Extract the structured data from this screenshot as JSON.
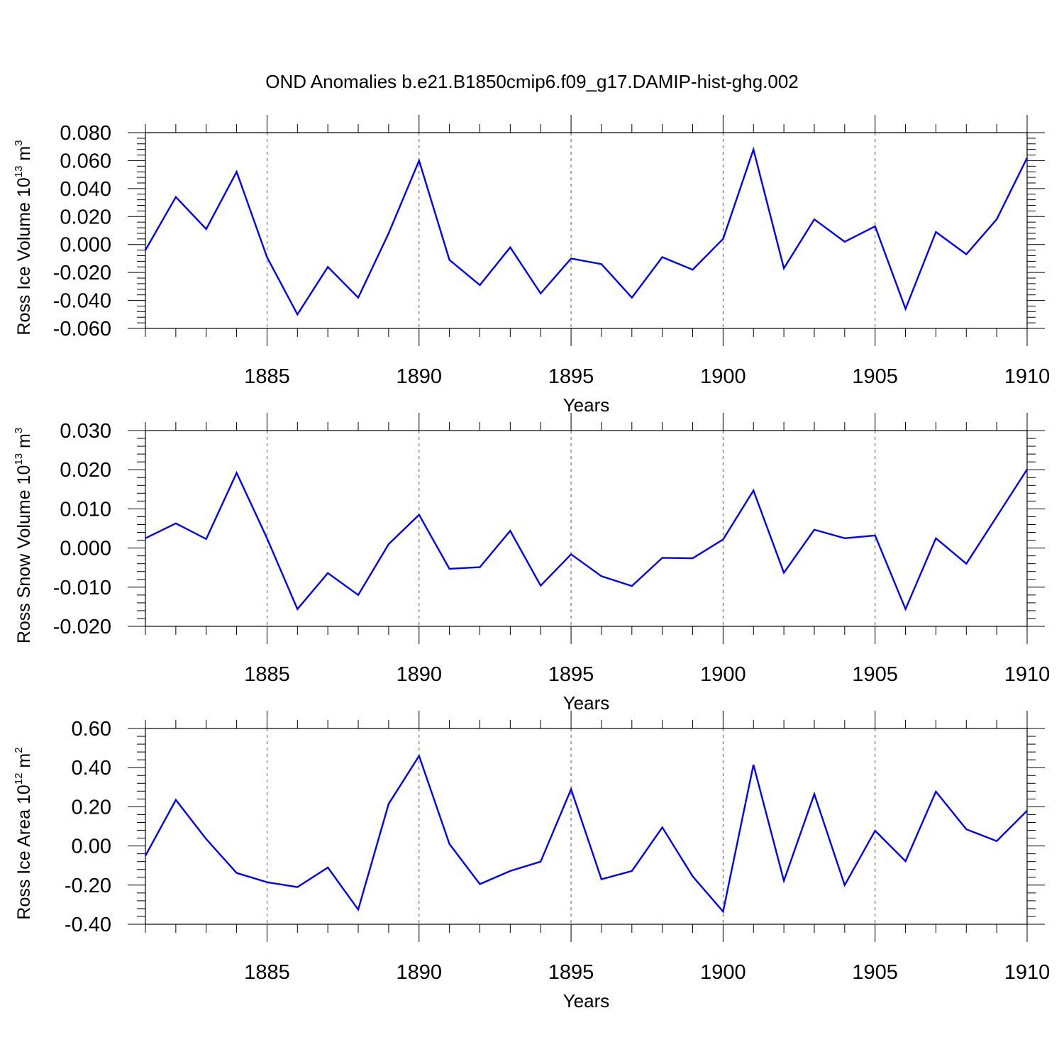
{
  "title": "OND Anomalies b.e21.B1850cmip6.f09_g17.DAMIP-hist-ghg.002",
  "colors": {
    "line": "#0000ff",
    "axis": "#000000",
    "grid": "#555555"
  },
  "chart_data": [
    {
      "type": "line",
      "ylabel": {
        "main": "Ross Ice Volume 10",
        "exp": "13",
        "unit": " m",
        "unit_exp": "3"
      },
      "xlabel": "Years",
      "xlim": [
        1881,
        1910
      ],
      "ylim": [
        -0.06,
        0.08
      ],
      "yticks": [
        -0.06,
        -0.04,
        -0.02,
        0.0,
        0.02,
        0.04,
        0.06,
        0.08
      ],
      "ytick_labels": [
        "-0.060",
        "-0.040",
        "-0.020",
        "0.000",
        "0.020",
        "0.040",
        "0.060",
        "0.080"
      ],
      "xticks": [
        1885,
        1890,
        1895,
        1900,
        1905,
        1910
      ],
      "xtick_labels": [
        "1885",
        "1890",
        "1895",
        "1900",
        "1905",
        "1910"
      ],
      "grid": "vertical dashed at labeled years",
      "x": [
        1881,
        1882,
        1883,
        1884,
        1885,
        1886,
        1887,
        1888,
        1889,
        1890,
        1891,
        1892,
        1893,
        1894,
        1895,
        1896,
        1897,
        1898,
        1899,
        1900,
        1901,
        1902,
        1903,
        1904,
        1905,
        1906,
        1907,
        1908,
        1909,
        1910
      ],
      "y": [
        -0.004,
        0.034,
        0.011,
        0.052,
        -0.009,
        -0.05,
        -0.016,
        -0.038,
        0.008,
        0.06,
        -0.011,
        -0.029,
        -0.002,
        -0.035,
        -0.01,
        -0.014,
        -0.038,
        -0.009,
        -0.018,
        0.004,
        0.068,
        -0.017,
        0.018,
        0.002,
        0.013,
        -0.046,
        0.009,
        -0.007,
        0.018,
        0.062
      ]
    },
    {
      "type": "line",
      "ylabel": {
        "main": "Ross Snow Volume 10",
        "exp": "13",
        "unit": " m",
        "unit_exp": "3"
      },
      "xlabel": "Years",
      "xlim": [
        1881,
        1910
      ],
      "ylim": [
        -0.02,
        0.03
      ],
      "yticks": [
        -0.02,
        -0.01,
        0.0,
        0.01,
        0.02,
        0.03
      ],
      "ytick_labels": [
        "-0.020",
        "-0.010",
        "0.000",
        "0.010",
        "0.020",
        "0.030"
      ],
      "xticks": [
        1885,
        1890,
        1895,
        1900,
        1905,
        1910
      ],
      "xtick_labels": [
        "1885",
        "1890",
        "1895",
        "1900",
        "1905",
        "1910"
      ],
      "grid": "vertical dashed at labeled years",
      "x": [
        1881,
        1882,
        1883,
        1884,
        1885,
        1886,
        1887,
        1888,
        1889,
        1890,
        1891,
        1892,
        1893,
        1894,
        1895,
        1896,
        1897,
        1898,
        1899,
        1900,
        1901,
        1902,
        1903,
        1904,
        1905,
        1906,
        1907,
        1908,
        1909,
        1910
      ],
      "y": [
        0.0025,
        0.0063,
        0.0023,
        0.0192,
        0.0025,
        -0.0156,
        -0.0064,
        -0.012,
        0.001,
        0.0085,
        -0.0053,
        -0.0049,
        0.0044,
        -0.0096,
        -0.0016,
        -0.0072,
        -0.0097,
        -0.0025,
        -0.0026,
        0.0022,
        0.0147,
        -0.0063,
        0.0047,
        0.0025,
        0.0032,
        -0.0156,
        0.0025,
        -0.004,
        0.008,
        0.0201
      ]
    },
    {
      "type": "line",
      "ylabel": {
        "main": "Ross Ice Area 10",
        "exp": "12",
        "unit": " m",
        "unit_exp": "2"
      },
      "xlabel": "Years",
      "xlim": [
        1881,
        1910
      ],
      "ylim": [
        -0.4,
        0.6
      ],
      "yticks": [
        -0.4,
        -0.2,
        0.0,
        0.2,
        0.4,
        0.6
      ],
      "ytick_labels": [
        "-0.40",
        "-0.20",
        "0.00",
        "0.20",
        "0.40",
        "0.60"
      ],
      "xticks": [
        1885,
        1890,
        1895,
        1900,
        1905,
        1910
      ],
      "xtick_labels": [
        "1885",
        "1890",
        "1895",
        "1900",
        "1905",
        "1910"
      ],
      "grid": "vertical dashed at labeled years",
      "x": [
        1881,
        1882,
        1883,
        1884,
        1885,
        1886,
        1887,
        1888,
        1889,
        1890,
        1891,
        1892,
        1893,
        1894,
        1895,
        1896,
        1897,
        1898,
        1899,
        1900,
        1901,
        1902,
        1903,
        1904,
        1905,
        1906,
        1907,
        1908,
        1909,
        1910
      ],
      "y": [
        -0.05,
        0.235,
        0.035,
        -0.138,
        -0.185,
        -0.21,
        -0.11,
        -0.325,
        0.215,
        0.46,
        0.01,
        -0.195,
        -0.128,
        -0.08,
        0.29,
        -0.17,
        -0.128,
        0.095,
        -0.155,
        -0.335,
        0.415,
        -0.178,
        0.265,
        -0.2,
        0.078,
        -0.078,
        0.278,
        0.085,
        0.025,
        0.18
      ]
    }
  ]
}
